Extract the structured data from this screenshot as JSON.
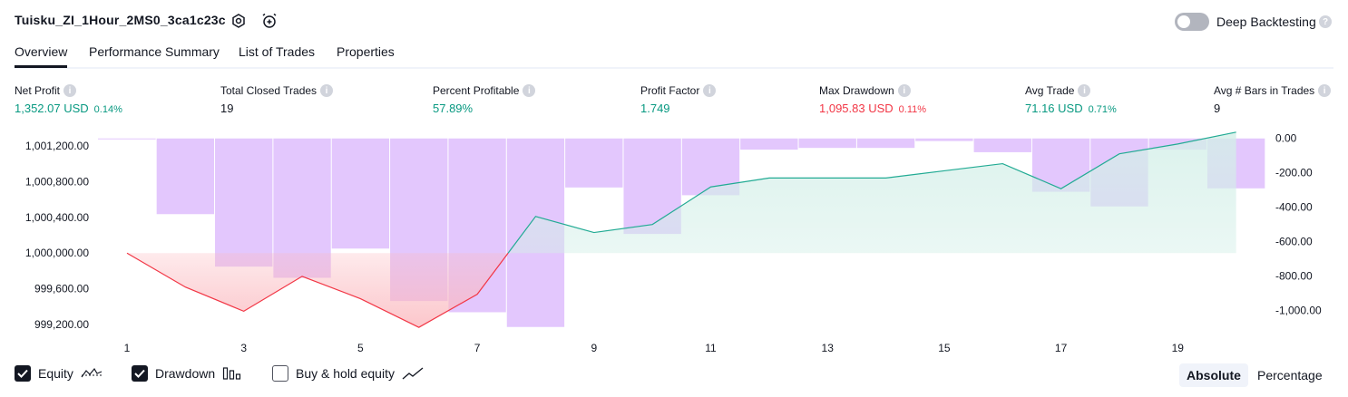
{
  "header": {
    "strategy_name": "Tuisku_ZI_1Hour_2MS0_3ca1c23c",
    "deep_backtesting_label": "Deep Backtesting",
    "deep_backtesting_on": false
  },
  "tabs": [
    {
      "label": "Overview",
      "active": true
    },
    {
      "label": "Performance Summary",
      "active": false
    },
    {
      "label": "List of Trades",
      "active": false
    },
    {
      "label": "Properties",
      "active": false
    }
  ],
  "metrics": {
    "net_profit": {
      "label": "Net Profit",
      "value": "1,352.07 USD",
      "pct": "0.14%"
    },
    "total_closed_trades": {
      "label": "Total Closed Trades",
      "value": "19"
    },
    "percent_profitable": {
      "label": "Percent Profitable",
      "value": "57.89%"
    },
    "profit_factor": {
      "label": "Profit Factor",
      "value": "1.749"
    },
    "max_drawdown": {
      "label": "Max Drawdown",
      "value": "1,095.83 USD",
      "pct": "0.11%"
    },
    "avg_trade": {
      "label": "Avg Trade",
      "value": "71.16 USD",
      "pct": "0.71%"
    },
    "avg_bars": {
      "label": "Avg # Bars in Trades",
      "value": "9"
    }
  },
  "colors": {
    "green": "#089981",
    "red": "#f23645",
    "drawdown_bar": "#e1c4fd",
    "equity_line": "#22ab94",
    "equity_fill": "#d3efe8",
    "loss_line": "#f23645",
    "loss_fill": "#fbb9bf"
  },
  "chart_data": {
    "type": "line",
    "x": [
      1,
      2,
      3,
      4,
      5,
      6,
      7,
      8,
      9,
      10,
      11,
      12,
      13,
      14,
      15,
      16,
      17,
      18,
      19,
      20
    ],
    "x_tick_labels": [
      "1",
      "3",
      "5",
      "7",
      "9",
      "11",
      "13",
      "15",
      "17",
      "19"
    ],
    "left_axis": {
      "ticks": [
        "1,001,200.00",
        "1,000,800.00",
        "1,000,400.00",
        "1,000,000.00",
        "999,600.00",
        "999,200.00"
      ],
      "ylim": [
        999060,
        1001330
      ]
    },
    "right_axis": {
      "ticks": [
        "0.00",
        "-200.00",
        "-400.00",
        "-600.00",
        "-800.00",
        "-1,000.00"
      ],
      "ylim": [
        -1155,
        25
      ]
    },
    "series": [
      {
        "name": "Equity",
        "axis": "left",
        "baseline": 1000000,
        "values": [
          1000000,
          999620,
          999350,
          999740,
          999490,
          999170,
          999540,
          1000410,
          1000230,
          1000320,
          1000740,
          1000840,
          1000840,
          1000840,
          1000920,
          1001000,
          1000720,
          1001110,
          1001220,
          1001352.07
        ]
      },
      {
        "name": "Drawdown",
        "axis": "right",
        "values": [
          0,
          -440,
          -745,
          -810,
          -640,
          -945,
          -1010,
          -1095.83,
          -285,
          -555,
          -330,
          -65,
          -55,
          -55,
          -15,
          -80,
          -310,
          -395,
          -65,
          -290
        ]
      }
    ],
    "legend": [
      "Equity",
      "Drawdown",
      "Buy & hold equity"
    ],
    "legend_placement": "bottom-left"
  },
  "legend": {
    "equity": {
      "label": "Equity",
      "checked": true
    },
    "drawdown": {
      "label": "Drawdown",
      "checked": true
    },
    "buy_hold": {
      "label": "Buy & hold equity",
      "checked": false
    }
  },
  "scale_toggle": {
    "absolute_label": "Absolute",
    "percentage_label": "Percentage",
    "selected": "Absolute"
  }
}
